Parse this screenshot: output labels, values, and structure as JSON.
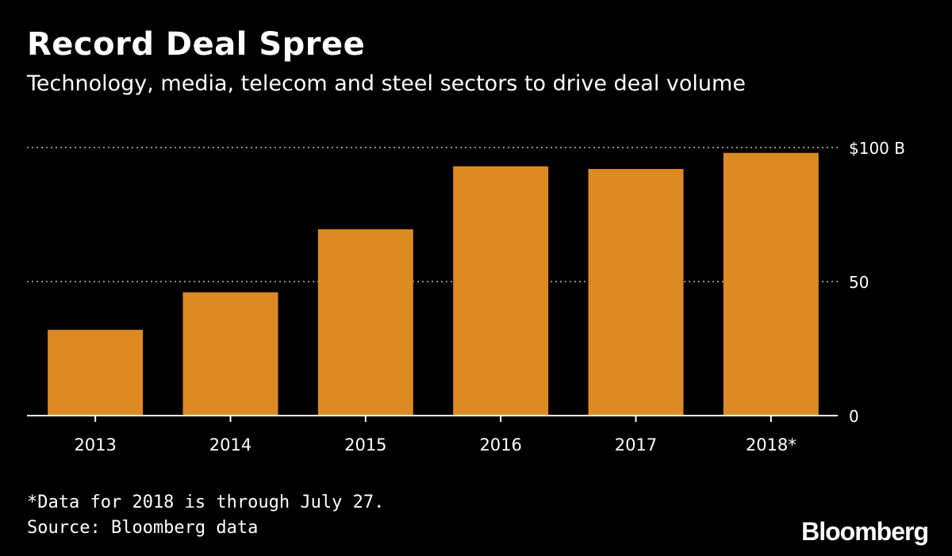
{
  "header": {
    "title": "Record Deal Spree",
    "subtitle": "Technology, media, telecom and steel sectors to drive deal volume"
  },
  "chart_data": {
    "type": "bar",
    "title": "Record Deal Spree",
    "subtitle": "Technology, media, telecom and steel sectors to drive deal volume",
    "categories": [
      "2013",
      "2014",
      "2015",
      "2016",
      "2017",
      "2018*"
    ],
    "values": [
      32,
      46,
      69.5,
      93,
      92,
      98
    ],
    "unit": "$ B",
    "xlabel": "",
    "ylabel": "",
    "ylim": [
      0,
      100
    ],
    "yticks": [
      {
        "value": 0,
        "label": "0"
      },
      {
        "value": 50,
        "label": "50"
      },
      {
        "value": 100,
        "label": "$100 B"
      }
    ],
    "grid": true,
    "bar_color": "#DD8A24",
    "background": "#000000"
  },
  "footer": {
    "note": "*Data for 2018 is through July 27.",
    "source": "Source: Bloomberg data",
    "logo": "Bloomberg"
  }
}
